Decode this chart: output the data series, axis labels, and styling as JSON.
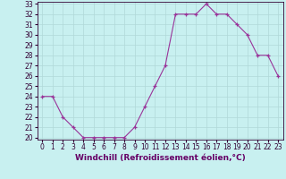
{
  "x": [
    0,
    1,
    2,
    3,
    4,
    5,
    6,
    7,
    8,
    9,
    10,
    11,
    12,
    13,
    14,
    15,
    16,
    17,
    18,
    19,
    20,
    21,
    22,
    23
  ],
  "y": [
    24,
    24,
    22,
    21,
    20,
    20,
    20,
    20,
    20,
    21,
    23,
    25,
    27,
    32,
    32,
    32,
    33,
    32,
    32,
    31,
    30,
    28,
    28,
    26
  ],
  "line_color": "#993399",
  "marker_color": "#993399",
  "bg_color": "#c8f0f0",
  "grid_color": "#b0d8d8",
  "xlabel": "Windchill (Refroidissement éolien,°C)",
  "ylim": [
    20,
    33
  ],
  "xlim": [
    -0.5,
    23.5
  ],
  "yticks": [
    20,
    21,
    22,
    23,
    24,
    25,
    26,
    27,
    28,
    29,
    30,
    31,
    32,
    33
  ],
  "xticks": [
    0,
    1,
    2,
    3,
    4,
    5,
    6,
    7,
    8,
    9,
    10,
    11,
    12,
    13,
    14,
    15,
    16,
    17,
    18,
    19,
    20,
    21,
    22,
    23
  ],
  "axis_fontsize": 6.5,
  "tick_fontsize": 5.5,
  "xlabel_fontsize": 6.5
}
